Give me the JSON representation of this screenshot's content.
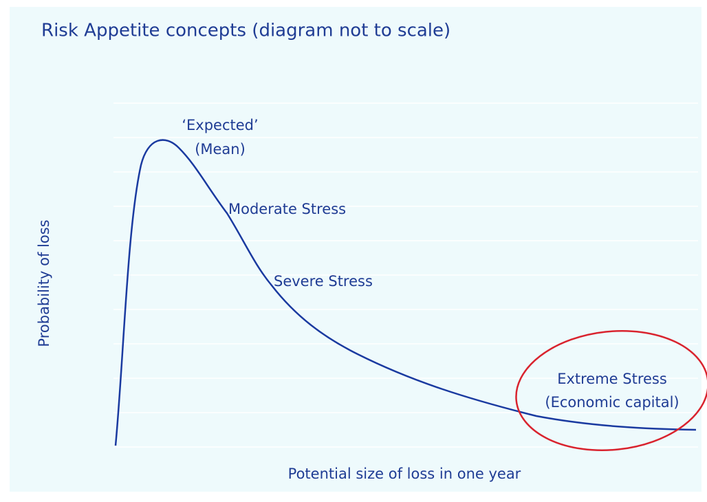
{
  "title": "Risk Appetite concepts (diagram not to scale)",
  "axes": {
    "x_label": "Potential size of loss in one year",
    "y_label": "Probability of loss"
  },
  "annotations": [
    "‘Expected’",
    "(Mean)",
    "Moderate Stress",
    "Severe Stress",
    "Extreme Stress",
    "(Economic capital)"
  ]
}
